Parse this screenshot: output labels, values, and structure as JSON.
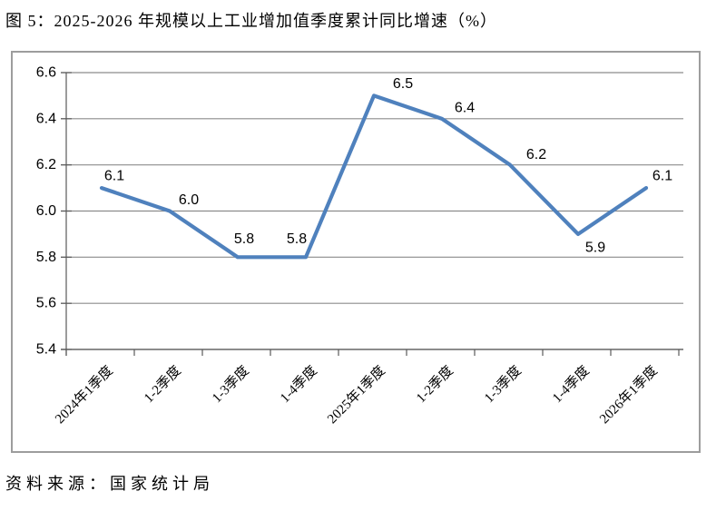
{
  "page": {
    "title": "图 5：2025-2026 年规模以上工业增加值季度累计同比增速（%）",
    "source_note": "资料来源：国家统计局"
  },
  "chart_data": {
    "type": "line",
    "title": "图 5：2025-2026 年规模以上工业增加值季度累计同比增速（%）",
    "categories": [
      "2024年1季度",
      "1-2季度",
      "1-3季度",
      "1-4季度",
      "2025年1季度",
      "1-2季度",
      "1-3季度",
      "1-4季度",
      "2026年1季度"
    ],
    "values": [
      6.1,
      6.0,
      5.8,
      5.8,
      6.5,
      6.4,
      6.2,
      5.9,
      6.1
    ],
    "data_labels": [
      "6.1",
      "6.0",
      "5.8",
      "5.8",
      "6.5",
      "6.4",
      "6.2",
      "5.9",
      "6.1"
    ],
    "label_side": [
      "above",
      "above",
      "above",
      "above",
      "above",
      "above",
      "above",
      "below",
      "above"
    ],
    "ylim": [
      5.4,
      6.6
    ],
    "ytick_step": 0.2,
    "ytick_labels": [
      "6.6",
      "6.4",
      "6.2",
      "6.0",
      "5.8",
      "5.6",
      "5.4"
    ],
    "xlabel": "",
    "ylabel": "",
    "grid": true,
    "legend": "none",
    "source": "资料来源：国家统计局",
    "colors": {
      "line": "#4F81BD",
      "gridline": "#8c8c8c",
      "axis": "#595959",
      "frame_border": "#9d9d9d",
      "text": "#000000"
    }
  }
}
